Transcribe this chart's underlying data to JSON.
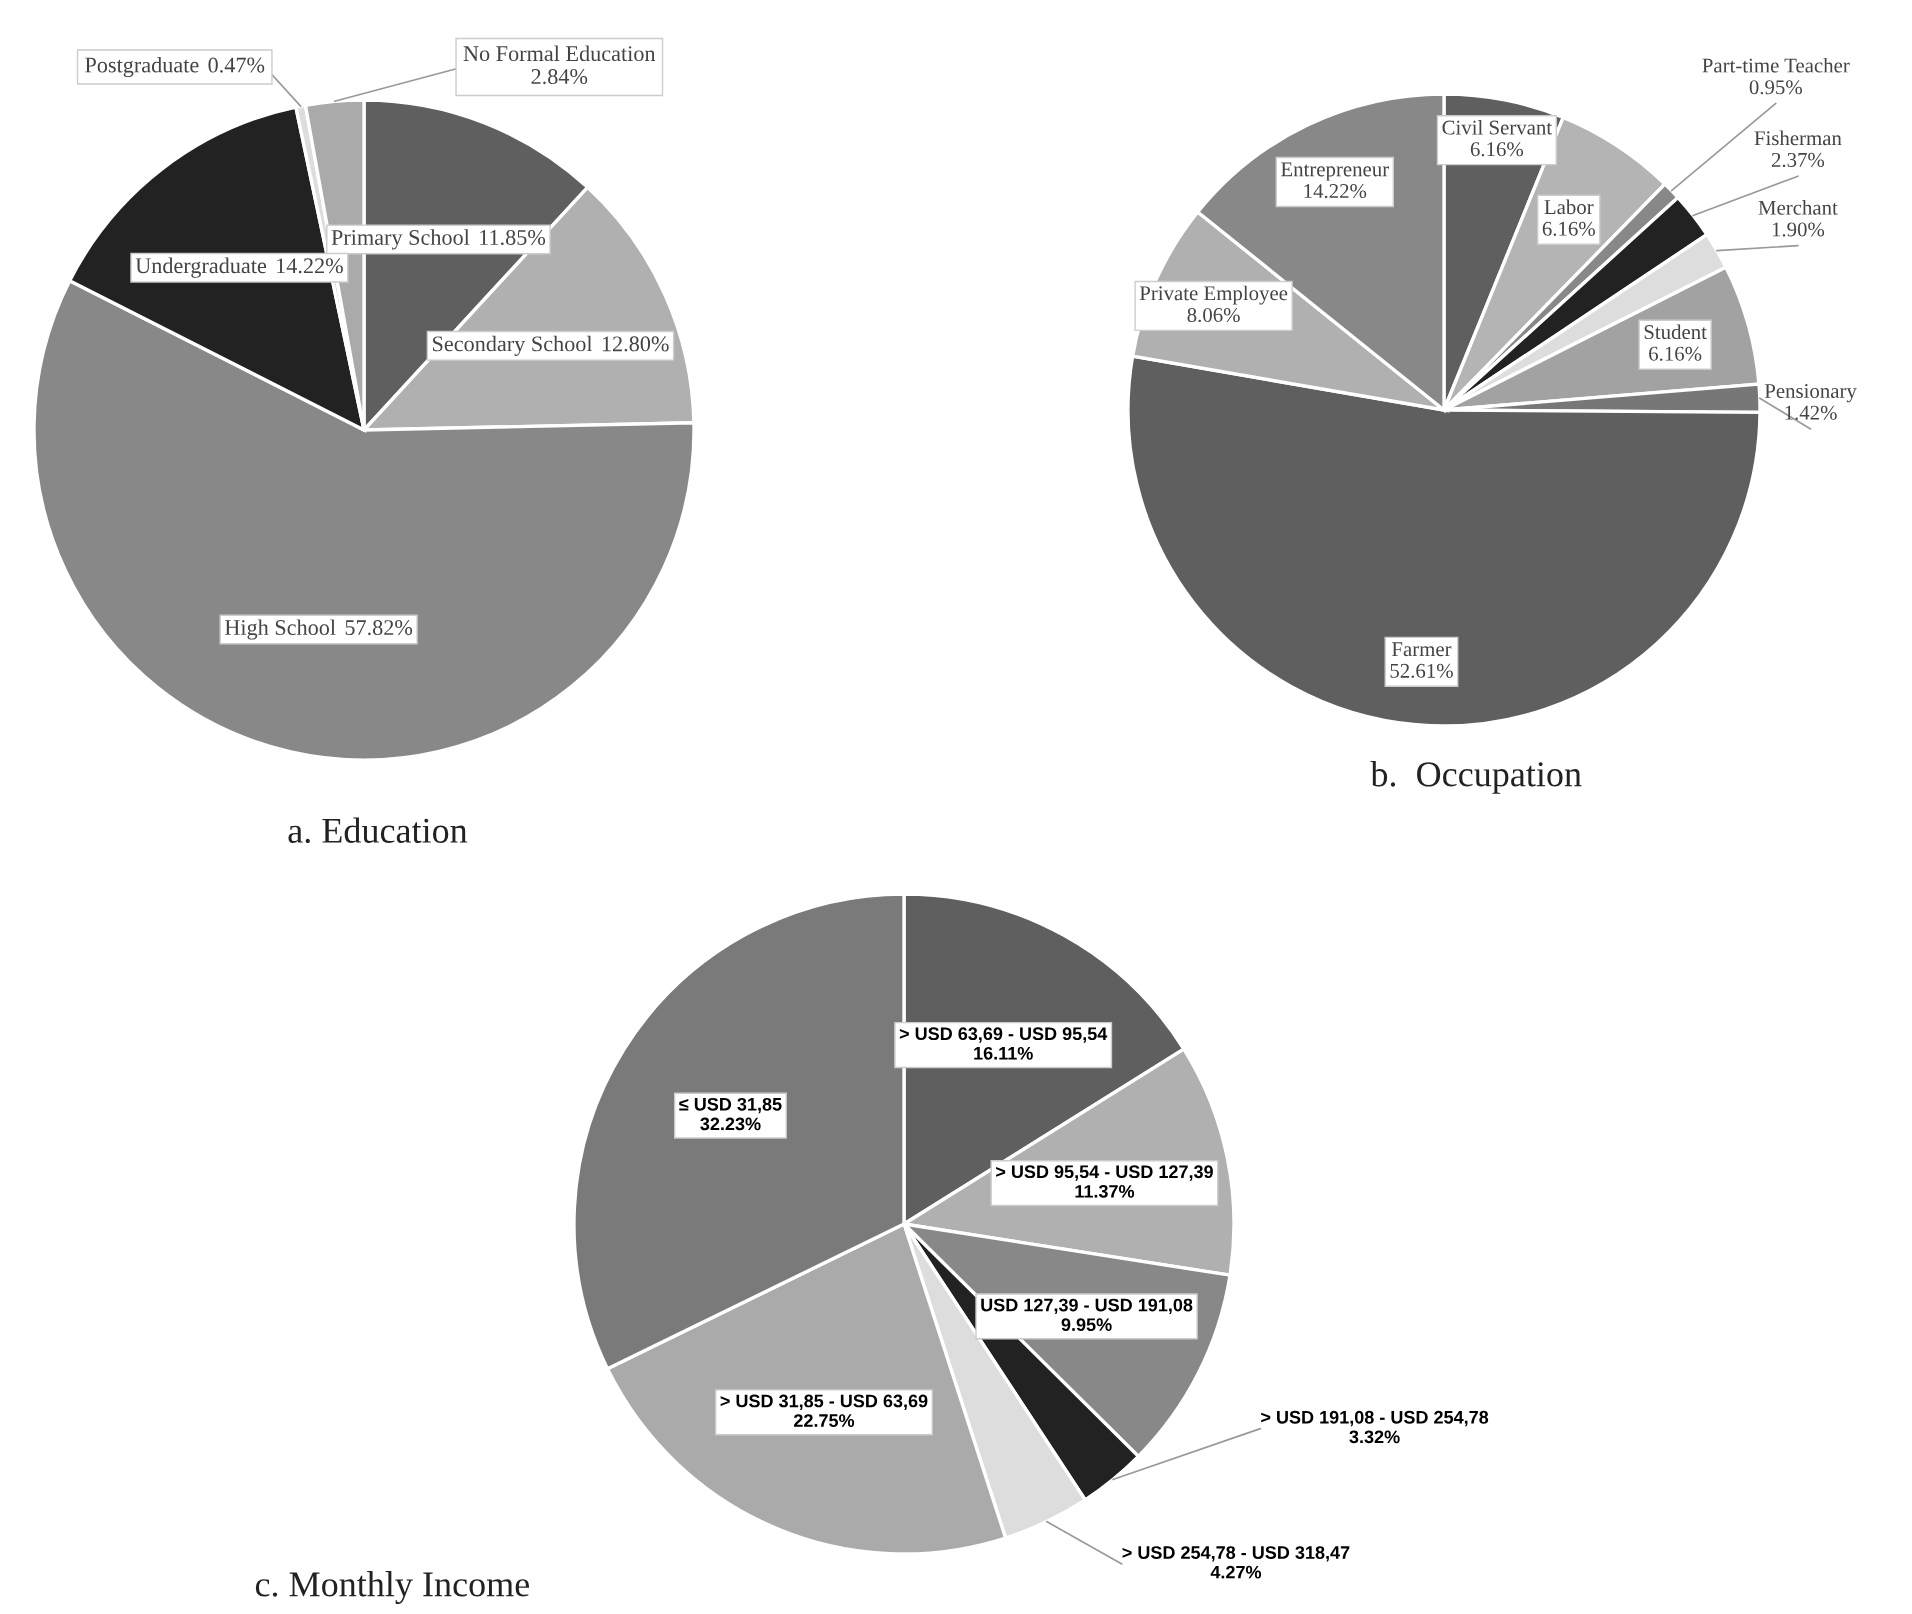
{
  "chart_data": [
    {
      "type": "pie",
      "title": "a. Education",
      "categories": [
        "Primary School",
        "Secondary School",
        "High School",
        "Undergraduate",
        "Postgraduate",
        "No Formal Education"
      ],
      "values": [
        11.85,
        12.8,
        57.82,
        14.22,
        0.47,
        2.84
      ],
      "colors": [
        "#5f5f5f",
        "#b0b0b0",
        "#888888",
        "#222222",
        "#dddddd",
        "#aaaaaa"
      ],
      "value_labels": [
        "11.85%",
        "12.80%",
        "57.82%",
        "14.22%",
        "0.47%",
        "2.84%"
      ]
    },
    {
      "type": "pie",
      "title": "b.  Occupation",
      "categories": [
        "Civil Servant",
        "Labor",
        "Part-time Teacher",
        "Fisherman",
        "Merchant",
        "Student",
        "Pensionary",
        "Farmer",
        "Private Employee",
        "Entrepreneur"
      ],
      "values": [
        6.16,
        6.16,
        0.95,
        2.37,
        1.9,
        6.16,
        1.42,
        52.61,
        8.06,
        14.22
      ],
      "colors": [
        "#5f5f5f",
        "#b4b4b4",
        "#888888",
        "#222222",
        "#dddddd",
        "#a2a2a2",
        "#777777",
        "#5f5f5f",
        "#b0b0b0",
        "#888888"
      ],
      "value_labels": [
        "6.16%",
        "6.16%",
        "0.95%",
        "2.37%",
        "1.90%",
        "6.16%",
        "1.42%",
        "52.61%",
        "8.06%",
        "14.22%"
      ]
    },
    {
      "type": "pie",
      "title": "c. Monthly Income",
      "categories": [
        "> USD 63,69 - USD 95,54",
        "> USD 95,54 - USD 127,39",
        "USD 127,39 - USD 191,08",
        "> USD 191,08 - USD 254,78",
        "> USD 254,78 - USD 318,47",
        "> USD 31,85 - USD 63,69",
        "≤ USD 31,85"
      ],
      "values": [
        16.11,
        11.37,
        9.95,
        3.32,
        4.27,
        22.75,
        32.23
      ],
      "colors": [
        "#5f5f5f",
        "#b0b0b0",
        "#888888",
        "#222222",
        "#dddddd",
        "#aaaaaa",
        "#7a7a7a"
      ],
      "value_labels": [
        "16.11%",
        "11.37%",
        "9.95%",
        "3.32%",
        "4.27%",
        "22.75%",
        "32.23%"
      ]
    }
  ]
}
